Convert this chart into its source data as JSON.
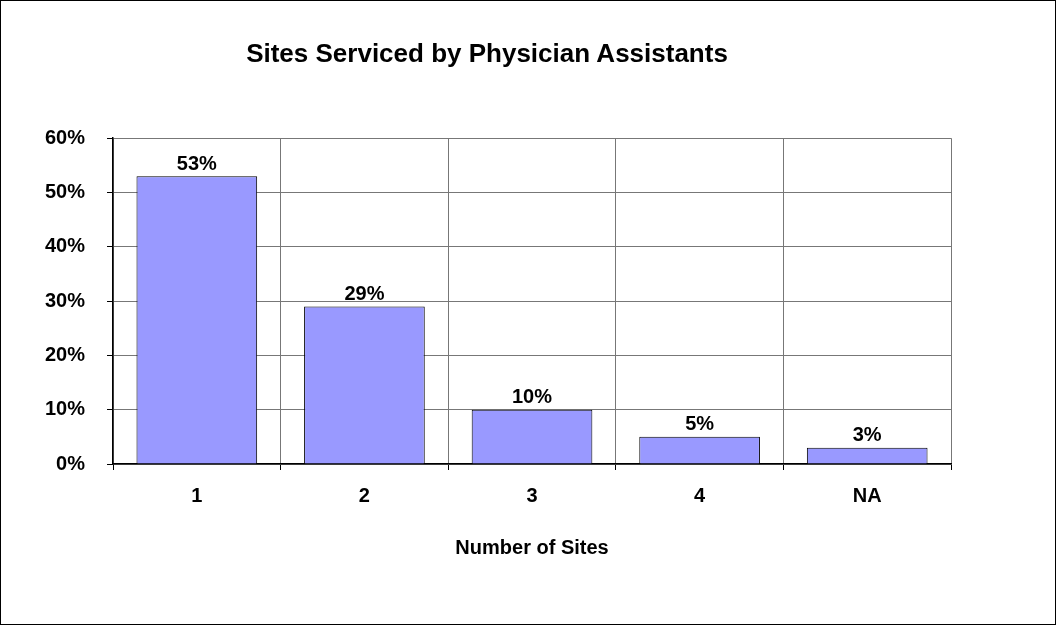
{
  "chart_data": {
    "type": "bar",
    "title": "Sites Serviced by Physician Assistants",
    "xlabel": "Number of Sites",
    "categories": [
      "1",
      "2",
      "3",
      "4",
      "NA"
    ],
    "values": [
      53,
      29,
      10,
      5,
      3
    ],
    "value_labels": [
      "53%",
      "29%",
      "10%",
      "5%",
      "3%"
    ],
    "color": "#9999ff",
    "ylim": [
      0,
      60
    ],
    "yticks": [
      {
        "value": 0,
        "label": "0%"
      },
      {
        "value": 10,
        "label": "10%"
      },
      {
        "value": 20,
        "label": "20%"
      },
      {
        "value": 30,
        "label": "30%"
      },
      {
        "value": 40,
        "label": "40%"
      },
      {
        "value": 50,
        "label": "50%"
      },
      {
        "value": 60,
        "label": "60%"
      }
    ],
    "grid": true,
    "legend": false
  }
}
